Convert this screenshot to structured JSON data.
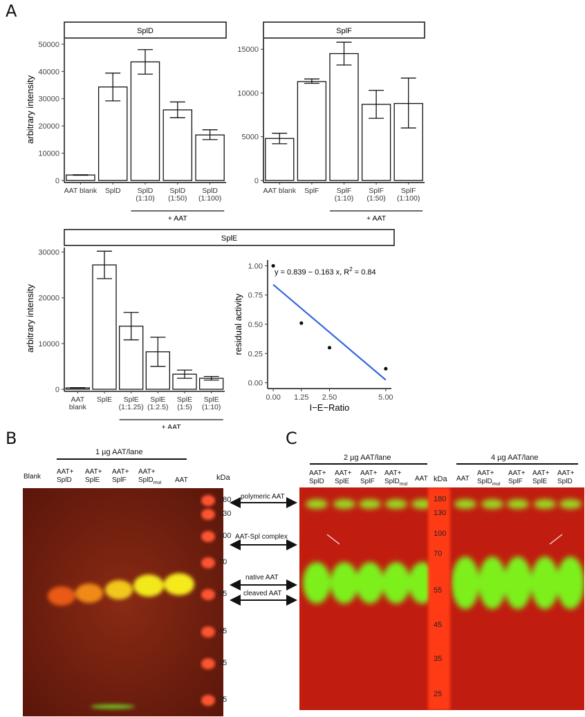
{
  "panels": {
    "a": "A",
    "b": "B",
    "c": "C"
  },
  "chart_data": [
    {
      "type": "bar",
      "id": "spld",
      "facet": "SplD",
      "ylabel": "arbitrary intensity",
      "ylim": [
        0,
        52000
      ],
      "yticks": [
        0,
        10000,
        20000,
        30000,
        40000,
        50000
      ],
      "categories": [
        "AAT blank",
        "SplD",
        "SplD (1:10)",
        "SplD (1:50)",
        "SplD (1:100)"
      ],
      "tick_lines": [
        [
          "AAT blank"
        ],
        [
          "SplD"
        ],
        [
          "SplD",
          "(1:10)"
        ],
        [
          "SplD",
          "(1:50)"
        ],
        [
          "SplD",
          "(1:100)"
        ]
      ],
      "values": [
        2000,
        34300,
        43500,
        25900,
        16700
      ],
      "error_low": [
        1900,
        29200,
        39000,
        23000,
        15000
      ],
      "error_high": [
        2100,
        39400,
        48000,
        28800,
        18600
      ],
      "group_label": "+ AAT",
      "group_start": 2,
      "group_end": 4
    },
    {
      "type": "bar",
      "id": "splf",
      "facet": "SplF",
      "ylabel": "",
      "ylim": [
        0,
        16200
      ],
      "yticks": [
        0,
        5000,
        10000,
        15000
      ],
      "categories": [
        "AAT blank",
        "SplF",
        "SplF (1:10)",
        "SplF (1:50)",
        "SplF (1:100)"
      ],
      "tick_lines": [
        [
          "AAT blank"
        ],
        [
          "SplF"
        ],
        [
          "SplF",
          "(1:10)"
        ],
        [
          "SplF",
          "(1:50)"
        ],
        [
          "SplF",
          "(1:100)"
        ]
      ],
      "values": [
        4800,
        11300,
        14500,
        8700,
        8800
      ],
      "error_low": [
        4200,
        11100,
        13200,
        7100,
        6000
      ],
      "error_high": [
        5400,
        11600,
        15800,
        10300,
        11700
      ],
      "group_label": "+ AAT",
      "group_start": 2,
      "group_end": 4
    },
    {
      "type": "bar",
      "id": "sple",
      "facet": "SplE",
      "ylabel": "arbitrary intensity",
      "ylim": [
        0,
        31000
      ],
      "yticks": [
        0,
        10000,
        20000,
        30000
      ],
      "categories": [
        "AAT blank",
        "SplE",
        "SplE (1:1.25)",
        "SplE (1:2.5)",
        "SplE (1:5)",
        "SplE (1:10)"
      ],
      "tick_lines": [
        [
          "AAT",
          "blank"
        ],
        [
          "SplE"
        ],
        [
          "SplE",
          "(1:1.25)"
        ],
        [
          "SplE",
          "(1:2.5)"
        ],
        [
          "SplE",
          "(1:5)"
        ],
        [
          "SplE",
          "(1:10)"
        ]
      ],
      "values": [
        300,
        27200,
        13800,
        8200,
        3300,
        2400
      ],
      "error_low": [
        250,
        24200,
        10800,
        5000,
        2400,
        2000
      ],
      "error_high": [
        350,
        30200,
        16800,
        11400,
        4200,
        2800
      ],
      "group_label": "+ AAT",
      "group_start": 2,
      "group_end": 5
    },
    {
      "type": "scatter",
      "id": "regression",
      "xlabel": "I−E−Ratio",
      "ylabel": "residual activity",
      "xlim": [
        -0.25,
        5.25
      ],
      "ylim": [
        -0.05,
        1.05
      ],
      "xticks": [
        0,
        1.25,
        2.5,
        5
      ],
      "xtick_labels": [
        "0.00",
        "1.25",
        "2.50",
        "5.00"
      ],
      "yticks": [
        0,
        0.25,
        0.5,
        0.75,
        1
      ],
      "ytick_labels": [
        "0.00",
        "0.25",
        "0.50",
        "0.75",
        "1.00"
      ],
      "points": [
        [
          0,
          1.0
        ],
        [
          1.25,
          0.51
        ],
        [
          2.5,
          0.3
        ],
        [
          5,
          0.12
        ]
      ],
      "fit": {
        "intercept": 0.839,
        "slope": -0.163,
        "color": "#3366dd"
      },
      "equation": "y = 0.839 − 0.163 x, R",
      "equation_sup": "2",
      "equation_tail": " = 0.84"
    }
  ],
  "gel_b": {
    "group_label": "1 µg AAT/lane",
    "lanes": [
      {
        "l1": "Blank",
        "l2": ""
      },
      {
        "l1": "AAT+",
        "l2": "SplD"
      },
      {
        "l1": "AAT+",
        "l2": "SplE"
      },
      {
        "l1": "AAT+",
        "l2": "SplF"
      },
      {
        "l1": "AAT+",
        "l2": "SplD",
        "sub": "mut"
      },
      {
        "l1": "AAT",
        "l2": ""
      }
    ],
    "kda_label": "kDa",
    "markers": [
      "180",
      "130",
      "100",
      "70",
      "55",
      "45",
      "35",
      "25"
    ]
  },
  "annotations": [
    "polymeric AAT",
    "AAT-Spl complex",
    "native AAT",
    "cleaved AAT"
  ],
  "gel_c": {
    "group_left": "2 µg AAT/lane",
    "group_right": "4 µg AAT/lane",
    "kda_label": "kDa",
    "lanes_left": [
      {
        "l1": "AAT+",
        "l2": "SplD"
      },
      {
        "l1": "AAT+",
        "l2": "SplE"
      },
      {
        "l1": "AAT+",
        "l2": "SplF"
      },
      {
        "l1": "AAT+",
        "l2": "SplD",
        "sub": "mut"
      },
      {
        "l1": "AAT",
        "l2": ""
      }
    ],
    "lanes_right": [
      {
        "l1": "AAT",
        "l2": ""
      },
      {
        "l1": "AAT+",
        "l2": "SplD",
        "sub": "mut"
      },
      {
        "l1": "AAT+",
        "l2": "SplF"
      },
      {
        "l1": "AAT+",
        "l2": "SplE"
      },
      {
        "l1": "AAT+",
        "l2": "SplD"
      }
    ],
    "markers": [
      "180",
      "130",
      "100",
      "70",
      "55",
      "45",
      "35",
      "25"
    ]
  },
  "colors": {
    "gel_bg": "#7a1f10",
    "gel_bg_c": "#c41a10",
    "band_b": "#f2e81a",
    "band_c": "#7df01e",
    "ladder": "#ff5530"
  }
}
